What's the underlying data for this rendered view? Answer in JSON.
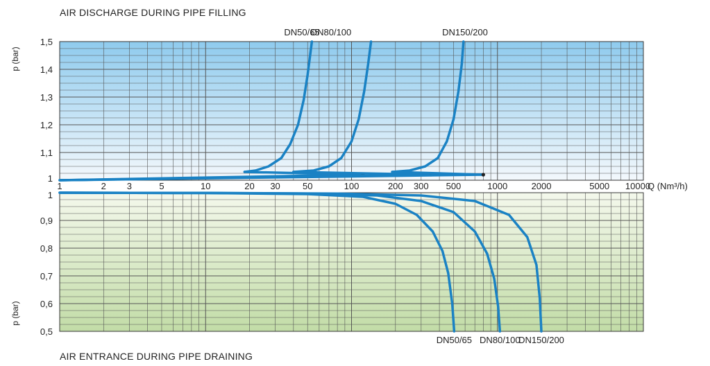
{
  "chart_data": [
    {
      "type": "line",
      "title": "AIR DISCHARGE DURING PIPE FILLING",
      "xlabel": "Q (Nm³/h)",
      "ylabel": "p (bar)",
      "xscale": "log",
      "xlim": [
        1,
        10000
      ],
      "ylim": [
        1,
        1.5
      ],
      "x_ticks": [
        1,
        2,
        3,
        5,
        10,
        20,
        30,
        50,
        100,
        200,
        300,
        500,
        1000,
        2000,
        5000,
        10000
      ],
      "x_tick_labels": [
        "1",
        "2",
        "3",
        "5",
        "10",
        "20",
        "30",
        "50",
        "100",
        "200",
        "300",
        "500",
        "1000",
        "2000",
        "5000",
        "10000"
      ],
      "y_ticks": [
        1,
        1.1,
        1.2,
        1.3,
        1.4,
        1.5
      ],
      "y_tick_labels": [
        "1",
        "1,1",
        "1,2",
        "1,3",
        "1,4",
        "1,5"
      ],
      "grid": true,
      "series": [
        {
          "name": "DN50/65",
          "x": [
            18.5,
            22,
            27,
            33,
            38,
            43,
            47,
            50,
            52,
            53.5
          ],
          "y": [
            1.03,
            1.035,
            1.05,
            1.08,
            1.13,
            1.2,
            1.29,
            1.38,
            1.45,
            1.5
          ],
          "discharge_line": {
            "x": [
              1,
              120
            ],
            "y": [
              1.0,
              1.02
            ]
          },
          "marker": {
            "x": 120,
            "y": 1.02
          }
        },
        {
          "name": "DN80/100",
          "x": [
            40,
            55,
            70,
            85,
            100,
            112,
            122,
            130,
            136
          ],
          "y": [
            1.03,
            1.035,
            1.05,
            1.08,
            1.14,
            1.22,
            1.32,
            1.42,
            1.5
          ],
          "discharge_line": {
            "x": [
              1,
              350
            ],
            "y": [
              1.0,
              1.02
            ]
          },
          "marker": {
            "x": 350,
            "y": 1.02
          }
        },
        {
          "name": "DN150/200",
          "x": [
            190,
            250,
            320,
            390,
            450,
            500,
            540,
            570,
            585
          ],
          "y": [
            1.03,
            1.035,
            1.05,
            1.08,
            1.14,
            1.22,
            1.32,
            1.42,
            1.5
          ],
          "discharge_line": {
            "x": [
              1,
              800
            ],
            "y": [
              1.0,
              1.02
            ]
          },
          "marker": {
            "x": 800,
            "y": 1.02
          }
        }
      ]
    },
    {
      "type": "line",
      "title": "AIR ENTRANCE DURING PIPE DRAINING",
      "xlabel": "Q (Nm³/h)",
      "ylabel": "p (bar)",
      "xscale": "log",
      "xlim": [
        1,
        10000
      ],
      "ylim": [
        0.5,
        1
      ],
      "y_ticks": [
        0.5,
        0.6,
        0.7,
        0.8,
        0.9,
        1
      ],
      "y_tick_labels": [
        "0,5",
        "0,6",
        "0,7",
        "0,8",
        "0,9",
        "1"
      ],
      "grid": true,
      "series": [
        {
          "name": "DN50/65",
          "x": [
            1,
            10,
            50,
            120,
            200,
            280,
            360,
            420,
            460,
            490,
            505
          ],
          "y": [
            1.0,
            0.999,
            0.995,
            0.985,
            0.96,
            0.92,
            0.86,
            0.79,
            0.71,
            0.6,
            0.5
          ]
        },
        {
          "name": "DN80/100",
          "x": [
            1,
            10,
            50,
            150,
            300,
            500,
            700,
            850,
            950,
            1010,
            1040
          ],
          "y": [
            1.0,
            0.999,
            0.997,
            0.99,
            0.97,
            0.93,
            0.86,
            0.78,
            0.69,
            0.59,
            0.5
          ]
        },
        {
          "name": "DN150/200",
          "x": [
            1,
            10,
            80,
            300,
            700,
            1200,
            1600,
            1850,
            1950,
            2000
          ],
          "y": [
            1.0,
            0.999,
            0.997,
            0.99,
            0.97,
            0.92,
            0.84,
            0.74,
            0.62,
            0.5
          ]
        }
      ]
    }
  ],
  "colors": {
    "curve": "#1a82c4",
    "grid": "#555555",
    "top_gradient": [
      "#8fcbee",
      "#f3f8fc"
    ],
    "bottom_gradient": [
      "#f4f8ec",
      "#c2dca7"
    ],
    "marker": "#222222"
  }
}
